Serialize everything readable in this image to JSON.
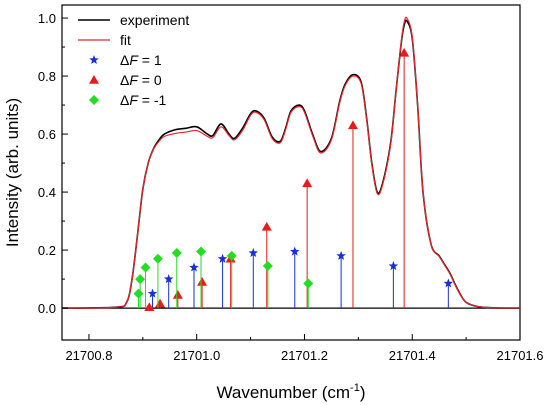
{
  "chart_data": {
    "type": "line",
    "xlabel": "Wavenumber (cm",
    "xlabel_sup": "-1",
    "xlabel_end": ")",
    "ylabel": "Intensity (arb. units)",
    "xlim": [
      21700.75,
      21701.6
    ],
    "ylim": [
      -0.11,
      1.045
    ],
    "x_ticks": [
      "21700.8",
      "21701.0",
      "21701.2",
      "21701.4",
      "21701.6"
    ],
    "x_tick_values": [
      21700.8,
      21701.0,
      21701.2,
      21701.4,
      21701.6
    ],
    "y_ticks": [
      "0.0",
      "0.2",
      "0.4",
      "0.6",
      "0.8",
      "1.0"
    ],
    "y_tick_values": [
      0.0,
      0.2,
      0.4,
      0.6,
      0.8,
      1.0
    ],
    "legend_position": "top-left",
    "legend": [
      {
        "label": "experiment"
      },
      {
        "label": "fit"
      },
      {
        "label_prefix": "Δ",
        "label_italic": "F",
        "label_rest": " = 1"
      },
      {
        "label_prefix": "Δ",
        "label_italic": "F",
        "label_rest": " = 0"
      },
      {
        "label_prefix": "Δ",
        "label_italic": "F",
        "label_rest": " = -1"
      }
    ],
    "series": [
      {
        "kind": "line",
        "color": "#000000",
        "x": [
          21700.75,
          21700.85,
          21700.87,
          21700.88,
          21700.89,
          21700.9,
          21700.91,
          21700.92,
          21700.93,
          21700.94,
          21700.96,
          21700.98,
          21701.0,
          21701.02,
          21701.03,
          21701.045,
          21701.06,
          21701.07,
          21701.085,
          21701.1,
          21701.11,
          21701.125,
          21701.14,
          21701.155,
          21701.165,
          21701.175,
          21701.19,
          21701.2,
          21701.215,
          21701.23,
          21701.25,
          21701.265,
          21701.275,
          21701.29,
          21701.305,
          21701.315,
          21701.325,
          21701.335,
          21701.345,
          21701.36,
          21701.37,
          21701.38,
          21701.385,
          21701.39,
          21701.4,
          21701.41,
          21701.42,
          21701.435,
          21701.45,
          21701.46,
          21701.47,
          21701.48,
          21701.49,
          21701.5,
          21701.52,
          21701.55,
          21701.6
        ],
        "y": [
          0.0,
          0.003,
          0.02,
          0.1,
          0.25,
          0.41,
          0.5,
          0.55,
          0.58,
          0.6,
          0.615,
          0.62,
          0.625,
          0.6,
          0.595,
          0.635,
          0.6,
          0.585,
          0.62,
          0.67,
          0.68,
          0.655,
          0.59,
          0.575,
          0.62,
          0.68,
          0.7,
          0.68,
          0.6,
          0.54,
          0.585,
          0.71,
          0.77,
          0.805,
          0.78,
          0.66,
          0.5,
          0.4,
          0.43,
          0.57,
          0.75,
          0.92,
          0.975,
          0.99,
          0.93,
          0.7,
          0.4,
          0.22,
          0.18,
          0.15,
          0.12,
          0.08,
          0.045,
          0.02,
          0.006,
          0.001,
          0.0
        ]
      },
      {
        "kind": "line",
        "color": "#e8262d",
        "x": [
          21700.75,
          21700.85,
          21700.87,
          21700.88,
          21700.89,
          21700.9,
          21700.91,
          21700.92,
          21700.93,
          21700.94,
          21700.96,
          21700.98,
          21701.0,
          21701.02,
          21701.03,
          21701.045,
          21701.06,
          21701.07,
          21701.085,
          21701.1,
          21701.11,
          21701.125,
          21701.14,
          21701.155,
          21701.165,
          21701.175,
          21701.19,
          21701.2,
          21701.215,
          21701.23,
          21701.25,
          21701.265,
          21701.275,
          21701.29,
          21701.305,
          21701.315,
          21701.325,
          21701.335,
          21701.345,
          21701.36,
          21701.37,
          21701.38,
          21701.385,
          21701.39,
          21701.4,
          21701.41,
          21701.42,
          21701.435,
          21701.45,
          21701.46,
          21701.47,
          21701.48,
          21701.49,
          21701.5,
          21701.52,
          21701.55,
          21701.6
        ],
        "y": [
          0.0,
          0.003,
          0.02,
          0.1,
          0.25,
          0.41,
          0.5,
          0.548,
          0.575,
          0.592,
          0.602,
          0.607,
          0.612,
          0.592,
          0.588,
          0.625,
          0.595,
          0.58,
          0.612,
          0.665,
          0.675,
          0.65,
          0.585,
          0.57,
          0.615,
          0.675,
          0.695,
          0.675,
          0.595,
          0.535,
          0.58,
          0.705,
          0.765,
          0.8,
          0.775,
          0.655,
          0.495,
          0.395,
          0.425,
          0.565,
          0.75,
          0.925,
          0.985,
          1.0,
          0.935,
          0.7,
          0.4,
          0.22,
          0.178,
          0.148,
          0.118,
          0.078,
          0.044,
          0.02,
          0.006,
          0.001,
          0.0
        ]
      },
      {
        "kind": "stem",
        "marker": "star",
        "color": "#1a2fd6",
        "x": [
          21700.918,
          21700.948,
          21700.995,
          21701.048,
          21701.105,
          21701.182,
          21701.268,
          21701.365,
          21701.467
        ],
        "y": [
          0.05,
          0.1,
          0.14,
          0.17,
          0.19,
          0.195,
          0.18,
          0.145,
          0.085
        ]
      },
      {
        "kind": "stem",
        "marker": "triangle",
        "color": "#e61c1c",
        "x": [
          21700.912,
          21700.932,
          21700.965,
          21701.01,
          21701.063,
          21701.13,
          21701.205,
          21701.29,
          21701.385
        ],
        "y": [
          0.003,
          0.015,
          0.045,
          0.09,
          0.17,
          0.28,
          0.43,
          0.63,
          0.88
        ]
      },
      {
        "kind": "stem",
        "marker": "diamond",
        "color": "#22dd22",
        "x": [
          21700.892,
          21700.895,
          21700.905,
          21700.928,
          21700.963,
          21701.008,
          21701.065,
          21701.132,
          21701.207
        ],
        "y": [
          0.05,
          0.1,
          0.14,
          0.17,
          0.19,
          0.195,
          0.18,
          0.145,
          0.085
        ]
      }
    ]
  }
}
